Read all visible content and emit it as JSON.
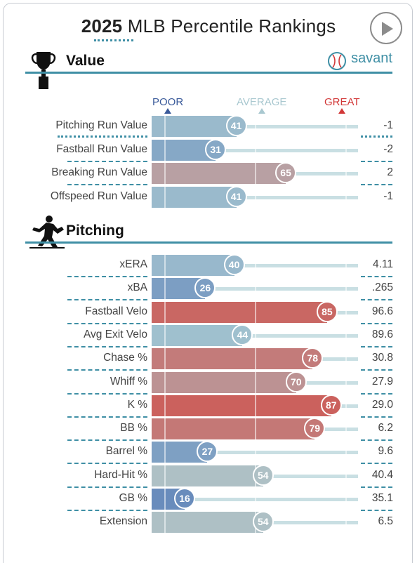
{
  "header": {
    "year": "2025",
    "title_rest": "MLB Percentile Rankings",
    "play_icon": "play-icon"
  },
  "value_section": {
    "title": "Value",
    "icon": "trophy-icon",
    "brand": "savant",
    "brand_icon": "baseball-icon"
  },
  "scale": {
    "poor": "POOR",
    "average": "AVERAGE",
    "great": "GREAT",
    "poor_color": "#3a5a9a",
    "average_color": "#a9c8d0",
    "great_color": "#d23838"
  },
  "pitching_section": {
    "title": "Pitching",
    "icon": "pitcher-icon"
  },
  "chart_data": {
    "type": "bar",
    "xlim": [
      0,
      100
    ],
    "value_metrics": [
      {
        "label": "Pitching Run Value",
        "percentile": 41,
        "value": "-1"
      },
      {
        "label": "Fastball Run Value",
        "percentile": 31,
        "value": "-2"
      },
      {
        "label": "Breaking Run Value",
        "percentile": 65,
        "value": "2"
      },
      {
        "label": "Offspeed Run Value",
        "percentile": 41,
        "value": "-1"
      }
    ],
    "pitching_metrics": [
      {
        "label": "xERA",
        "percentile": 40,
        "value": "4.11"
      },
      {
        "label": "xBA",
        "percentile": 26,
        "value": ".265"
      },
      {
        "label": "Fastball Velo",
        "percentile": 85,
        "value": "96.6"
      },
      {
        "label": "Avg Exit Velo",
        "percentile": 44,
        "value": "89.6"
      },
      {
        "label": "Chase %",
        "percentile": 78,
        "value": "30.8"
      },
      {
        "label": "Whiff %",
        "percentile": 70,
        "value": "27.9"
      },
      {
        "label": "K %",
        "percentile": 87,
        "value": "29.0"
      },
      {
        "label": "BB %",
        "percentile": 79,
        "value": "6.2"
      },
      {
        "label": "Barrel %",
        "percentile": 27,
        "value": "9.6"
      },
      {
        "label": "Hard-Hit %",
        "percentile": 54,
        "value": "40.4"
      },
      {
        "label": "GB %",
        "percentile": 16,
        "value": "35.1"
      },
      {
        "label": "Extension",
        "percentile": 54,
        "value": "6.5"
      }
    ]
  }
}
